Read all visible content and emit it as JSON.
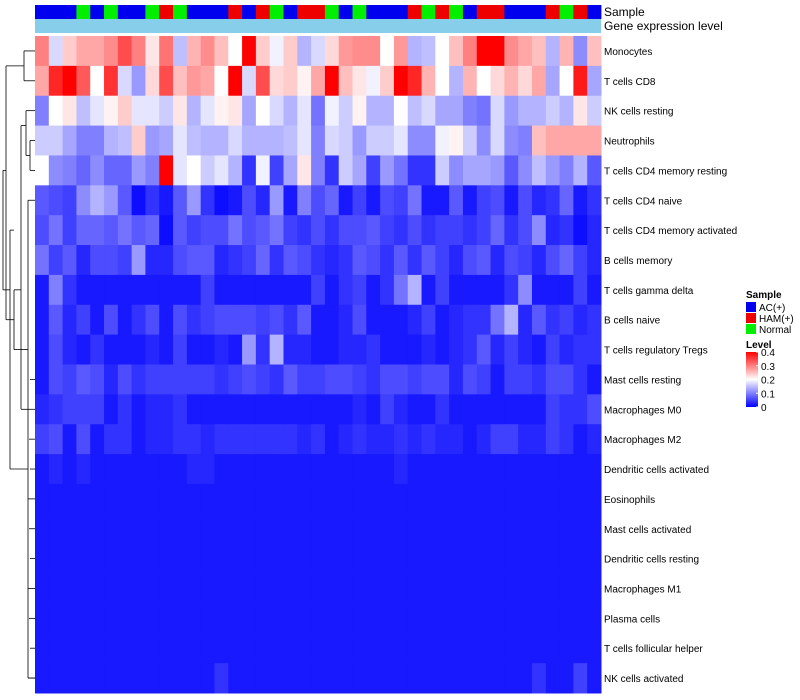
{
  "chart_data": {
    "type": "heatmap",
    "annotation_tracks": [
      "Sample",
      "Gene expression level"
    ],
    "rows": [
      "Monocytes",
      "T cells CD8",
      "NK cells resting",
      "Neutrophils",
      "T cells CD4 memory resting",
      "T cells CD4 naive",
      "T cells CD4 memory activated",
      "B cells memory",
      "T cells gamma delta",
      "B cells naive",
      "T cells regulatory  Tregs",
      "Mast cells resting",
      "Macrophages M0",
      "Macrophages M2",
      "Dendritic cells activated",
      "Eosinophils",
      "Mast cells activated",
      "Dendritic cells resting",
      "Macrophages M1",
      "Plasma cells",
      "T cells follicular helper",
      "NK cells activated"
    ],
    "sample_groups": [
      "AC(+)",
      "AC(+)",
      "AC(+)",
      "Normal",
      "AC(+)",
      "Normal",
      "AC(+)",
      "AC(+)",
      "Normal",
      "HAM(+)",
      "Normal",
      "AC(+)",
      "AC(+)",
      "AC(+)",
      "HAM(+)",
      "AC(+)",
      "HAM(+)",
      "Normal",
      "AC(+)",
      "HAM(+)",
      "HAM(+)",
      "Normal",
      "AC(+)",
      "Normal",
      "AC(+)",
      "AC(+)",
      "AC(+)",
      "HAM(+)",
      "Normal",
      "HAM(+)",
      "Normal",
      "AC(+)",
      "HAM(+)",
      "HAM(+)",
      "AC(+)",
      "AC(+)",
      "AC(+)",
      "HAM(+)",
      "Normal",
      "HAM(+)",
      "AC(+)"
    ],
    "values": [
      [
        0.3,
        0.17,
        0.24,
        0.27,
        0.27,
        0.29,
        0.34,
        0.3,
        0.22,
        0.31,
        0.15,
        0.26,
        0.29,
        0.25,
        0.2,
        0.4,
        0.24,
        0.19,
        0.24,
        0.14,
        0.17,
        0.23,
        0.28,
        0.29,
        0.29,
        0.2,
        0.28,
        0.14,
        0.15,
        0.2,
        0.25,
        0.3,
        0.4,
        0.4,
        0.29,
        0.27,
        0.25,
        0.14,
        0.26,
        0.11,
        0.25
      ],
      [
        0.27,
        0.37,
        0.4,
        0.33,
        0.2,
        0.36,
        0.17,
        0.12,
        0.23,
        0.34,
        0.25,
        0.28,
        0.27,
        0.2,
        0.4,
        0.17,
        0.34,
        0.23,
        0.24,
        0.21,
        0.27,
        0.4,
        0.25,
        0.22,
        0.19,
        0.24,
        0.4,
        0.37,
        0.26,
        0.2,
        0.14,
        0.26,
        0.2,
        0.23,
        0.26,
        0.23,
        0.27,
        0.13,
        0.2,
        0.38,
        0.13
      ],
      [
        0.1,
        0.2,
        0.22,
        0.15,
        0.18,
        0.21,
        0.24,
        0.18,
        0.18,
        0.16,
        0.22,
        0.14,
        0.18,
        0.21,
        0.22,
        0.13,
        0.2,
        0.17,
        0.14,
        0.18,
        0.09,
        0.19,
        0.16,
        0.21,
        0.14,
        0.14,
        0.2,
        0.15,
        0.17,
        0.13,
        0.13,
        0.1,
        0.09,
        0.17,
        0.12,
        0.14,
        0.14,
        0.16,
        0.14,
        0.22,
        0.16
      ],
      [
        0.16,
        0.16,
        0.13,
        0.1,
        0.1,
        0.14,
        0.15,
        0.24,
        0.12,
        0.13,
        0.18,
        0.15,
        0.14,
        0.14,
        0.17,
        0.14,
        0.14,
        0.14,
        0.15,
        0.18,
        0.1,
        0.17,
        0.16,
        0.12,
        0.16,
        0.16,
        0.18,
        0.11,
        0.11,
        0.19,
        0.21,
        0.16,
        0.11,
        0.17,
        0.11,
        0.1,
        0.25,
        0.27,
        0.27,
        0.27,
        0.27
      ],
      [
        0.2,
        0.11,
        0.1,
        0.08,
        0.11,
        0.08,
        0.08,
        0.12,
        0.1,
        0.4,
        0.18,
        0.2,
        0.16,
        0.18,
        0.14,
        0.04,
        0.19,
        0.05,
        0.13,
        0.22,
        0.1,
        0.04,
        0.16,
        0.13,
        0.05,
        0.12,
        0.09,
        0.04,
        0.04,
        0.16,
        0.11,
        0.13,
        0.13,
        0.12,
        0.07,
        0.11,
        0.15,
        0.12,
        0.1,
        0.14,
        0.07
      ],
      [
        0.07,
        0.06,
        0.05,
        0.11,
        0.14,
        0.12,
        0.07,
        0.01,
        0.04,
        0.02,
        0.07,
        0.12,
        0.04,
        0.01,
        0.02,
        0.06,
        0.03,
        0.12,
        0.02,
        0.1,
        0.06,
        0.08,
        0.02,
        0.05,
        0.02,
        0.06,
        0.05,
        0.09,
        0.02,
        0.02,
        0.07,
        0.02,
        0.05,
        0.06,
        0.02,
        0.06,
        0.03,
        0.04,
        0.08,
        0.02,
        0.04
      ],
      [
        0.06,
        0.09,
        0.05,
        0.08,
        0.08,
        0.07,
        0.09,
        0.07,
        0.08,
        0.01,
        0.07,
        0.05,
        0.06,
        0.06,
        0.09,
        0.06,
        0.07,
        0.09,
        0.05,
        0.04,
        0.06,
        0.04,
        0.06,
        0.06,
        0.07,
        0.05,
        0.04,
        0.06,
        0.04,
        0.05,
        0.05,
        0.04,
        0.05,
        0.08,
        0.04,
        0.06,
        0.11,
        0.03,
        0.04,
        0.01,
        0.03
      ],
      [
        0.09,
        0.05,
        0.07,
        0.03,
        0.06,
        0.06,
        0.05,
        0.12,
        0.03,
        0.03,
        0.06,
        0.07,
        0.07,
        0.03,
        0.04,
        0.05,
        0.08,
        0.04,
        0.07,
        0.06,
        0.04,
        0.03,
        0.04,
        0.07,
        0.06,
        0.04,
        0.07,
        0.04,
        0.07,
        0.05,
        0.03,
        0.06,
        0.07,
        0.03,
        0.06,
        0.05,
        0.03,
        0.06,
        0.08,
        0.05,
        0.03
      ],
      [
        0.02,
        0.1,
        0.04,
        0.02,
        0.02,
        0.02,
        0.02,
        0.02,
        0.02,
        0.02,
        0.02,
        0.02,
        0.05,
        0.02,
        0.02,
        0.02,
        0.02,
        0.02,
        0.02,
        0.02,
        0.05,
        0.02,
        0.04,
        0.05,
        0.02,
        0.04,
        0.09,
        0.14,
        0.02,
        0.05,
        0.02,
        0.02,
        0.02,
        0.02,
        0.04,
        0.11,
        0.02,
        0.02,
        0.02,
        0.05,
        0.02
      ],
      [
        0.02,
        0.07,
        0.03,
        0.05,
        0.02,
        0.06,
        0.02,
        0.04,
        0.06,
        0.02,
        0.06,
        0.04,
        0.05,
        0.06,
        0.06,
        0.06,
        0.05,
        0.06,
        0.04,
        0.07,
        0.02,
        0.02,
        0.03,
        0.06,
        0.02,
        0.02,
        0.02,
        0.03,
        0.05,
        0.02,
        0.03,
        0.04,
        0.04,
        0.09,
        0.14,
        0.03,
        0.07,
        0.04,
        0.05,
        0.03,
        0.04
      ],
      [
        0.02,
        0.06,
        0.03,
        0.02,
        0.04,
        0.02,
        0.02,
        0.02,
        0.03,
        0.02,
        0.05,
        0.02,
        0.02,
        0.03,
        0.02,
        0.12,
        0.04,
        0.14,
        0.03,
        0.03,
        0.02,
        0.02,
        0.03,
        0.03,
        0.04,
        0.02,
        0.02,
        0.02,
        0.03,
        0.02,
        0.03,
        0.04,
        0.07,
        0.03,
        0.05,
        0.03,
        0.02,
        0.05,
        0.03,
        0.04,
        0.04
      ],
      [
        0.02,
        0.06,
        0.05,
        0.07,
        0.06,
        0.03,
        0.06,
        0.04,
        0.05,
        0.05,
        0.05,
        0.05,
        0.05,
        0.04,
        0.05,
        0.06,
        0.05,
        0.04,
        0.07,
        0.05,
        0.05,
        0.06,
        0.06,
        0.05,
        0.04,
        0.06,
        0.06,
        0.05,
        0.06,
        0.06,
        0.03,
        0.06,
        0.05,
        0.02,
        0.05,
        0.05,
        0.04,
        0.06,
        0.06,
        0.04,
        0.02
      ],
      [
        0.03,
        0.04,
        0.05,
        0.05,
        0.05,
        0.02,
        0.04,
        0.02,
        0.03,
        0.03,
        0.04,
        0.02,
        0.02,
        0.02,
        0.02,
        0.02,
        0.02,
        0.02,
        0.02,
        0.02,
        0.02,
        0.02,
        0.02,
        0.03,
        0.02,
        0.05,
        0.03,
        0.02,
        0.02,
        0.04,
        0.02,
        0.02,
        0.02,
        0.02,
        0.02,
        0.02,
        0.02,
        0.05,
        0.04,
        0.04,
        0.06
      ],
      [
        0.05,
        0.06,
        0.02,
        0.06,
        0.02,
        0.04,
        0.04,
        0.02,
        0.03,
        0.03,
        0.04,
        0.04,
        0.03,
        0.04,
        0.04,
        0.04,
        0.04,
        0.04,
        0.04,
        0.03,
        0.04,
        0.02,
        0.03,
        0.04,
        0.03,
        0.03,
        0.04,
        0.03,
        0.04,
        0.03,
        0.03,
        0.02,
        0.03,
        0.05,
        0.05,
        0.03,
        0.03,
        0.05,
        0.04,
        0.02,
        0.03
      ],
      [
        0.02,
        0.03,
        0.02,
        0.03,
        0.02,
        0.02,
        0.02,
        0.02,
        0.02,
        0.02,
        0.02,
        0.03,
        0.03,
        0.02,
        0.02,
        0.02,
        0.02,
        0.02,
        0.02,
        0.02,
        0.02,
        0.02,
        0.02,
        0.02,
        0.02,
        0.02,
        0.03,
        0.02,
        0.02,
        0.02,
        0.02,
        0.02,
        0.02,
        0.02,
        0.02,
        0.02,
        0.02,
        0.02,
        0.02,
        0.02,
        0.02
      ],
      [
        0.02,
        0.02,
        0.02,
        0.02,
        0.02,
        0.02,
        0.02,
        0.02,
        0.02,
        0.02,
        0.02,
        0.02,
        0.02,
        0.02,
        0.02,
        0.02,
        0.02,
        0.02,
        0.02,
        0.02,
        0.02,
        0.02,
        0.02,
        0.02,
        0.02,
        0.02,
        0.02,
        0.02,
        0.02,
        0.02,
        0.02,
        0.02,
        0.02,
        0.02,
        0.02,
        0.02,
        0.02,
        0.02,
        0.02,
        0.02,
        0.02
      ],
      [
        0.02,
        0.02,
        0.02,
        0.02,
        0.02,
        0.02,
        0.02,
        0.02,
        0.02,
        0.02,
        0.02,
        0.02,
        0.02,
        0.02,
        0.02,
        0.02,
        0.02,
        0.02,
        0.02,
        0.02,
        0.02,
        0.02,
        0.02,
        0.02,
        0.02,
        0.02,
        0.02,
        0.02,
        0.02,
        0.02,
        0.02,
        0.02,
        0.02,
        0.02,
        0.02,
        0.02,
        0.02,
        0.02,
        0.02,
        0.02,
        0.02
      ],
      [
        0.02,
        0.02,
        0.02,
        0.02,
        0.02,
        0.02,
        0.02,
        0.02,
        0.02,
        0.02,
        0.02,
        0.02,
        0.02,
        0.02,
        0.02,
        0.02,
        0.02,
        0.02,
        0.02,
        0.02,
        0.02,
        0.02,
        0.02,
        0.02,
        0.02,
        0.02,
        0.02,
        0.02,
        0.02,
        0.02,
        0.02,
        0.02,
        0.02,
        0.02,
        0.02,
        0.02,
        0.02,
        0.02,
        0.02,
        0.02,
        0.02
      ],
      [
        0.02,
        0.02,
        0.02,
        0.02,
        0.02,
        0.02,
        0.02,
        0.02,
        0.02,
        0.02,
        0.02,
        0.02,
        0.02,
        0.02,
        0.02,
        0.02,
        0.02,
        0.02,
        0.02,
        0.02,
        0.02,
        0.02,
        0.02,
        0.02,
        0.02,
        0.02,
        0.02,
        0.02,
        0.02,
        0.02,
        0.02,
        0.02,
        0.02,
        0.02,
        0.02,
        0.02,
        0.02,
        0.02,
        0.02,
        0.02,
        0.02
      ],
      [
        0.02,
        0.02,
        0.02,
        0.02,
        0.02,
        0.02,
        0.02,
        0.02,
        0.02,
        0.02,
        0.02,
        0.02,
        0.02,
        0.02,
        0.02,
        0.02,
        0.02,
        0.02,
        0.02,
        0.02,
        0.02,
        0.02,
        0.02,
        0.02,
        0.02,
        0.02,
        0.02,
        0.02,
        0.02,
        0.02,
        0.02,
        0.02,
        0.02,
        0.02,
        0.02,
        0.02,
        0.02,
        0.02,
        0.02,
        0.02,
        0.02
      ],
      [
        0.02,
        0.02,
        0.02,
        0.02,
        0.02,
        0.02,
        0.02,
        0.02,
        0.02,
        0.02,
        0.02,
        0.02,
        0.02,
        0.02,
        0.02,
        0.02,
        0.02,
        0.02,
        0.02,
        0.02,
        0.02,
        0.02,
        0.02,
        0.02,
        0.02,
        0.02,
        0.02,
        0.02,
        0.02,
        0.02,
        0.02,
        0.02,
        0.02,
        0.02,
        0.02,
        0.02,
        0.02,
        0.02,
        0.02,
        0.02,
        0.02
      ],
      [
        0.02,
        0.02,
        0.02,
        0.02,
        0.02,
        0.02,
        0.02,
        0.02,
        0.02,
        0.02,
        0.02,
        0.02,
        0.02,
        0.04,
        0.02,
        0.02,
        0.02,
        0.02,
        0.02,
        0.02,
        0.02,
        0.02,
        0.02,
        0.02,
        0.02,
        0.02,
        0.02,
        0.02,
        0.02,
        0.02,
        0.02,
        0.02,
        0.02,
        0.02,
        0.02,
        0.02,
        0.04,
        0.02,
        0.02,
        0.05,
        0.02
      ]
    ],
    "legend": {
      "sample_title": "Sample",
      "sample_entries": [
        {
          "label": "AC(+)",
          "color": "#0000ee"
        },
        {
          "label": "HAM(+)",
          "color": "#ee0000"
        },
        {
          "label": "Normal",
          "color": "#00ee00"
        }
      ],
      "level_title": "Level",
      "level_ticks": [
        0.4,
        0.3,
        0.2,
        0.1,
        0
      ],
      "level_range": [
        0,
        0.4
      ]
    },
    "colors": {
      "low": "#0000ff",
      "mid": "#ffffff",
      "high": "#ff0000",
      "expression_bar": "#87ceeb"
    }
  }
}
